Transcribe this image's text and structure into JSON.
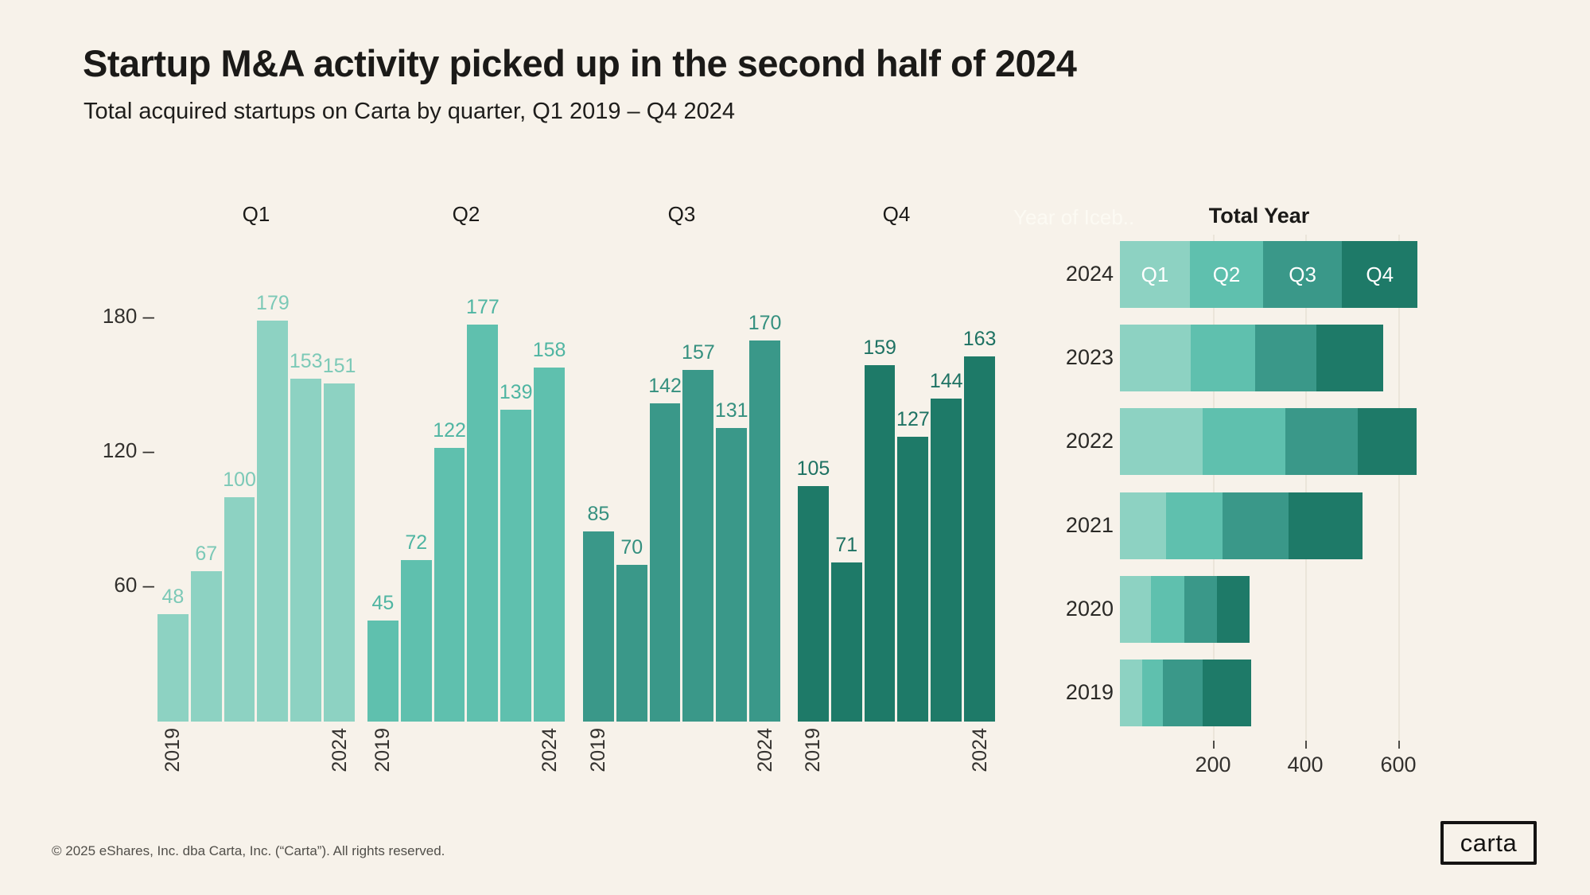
{
  "page": {
    "title": "Startup M&A activity picked up in the second half of 2024",
    "subtitle": "Total acquired startups on Carta by quarter, Q1 2019 – Q4 2024",
    "watermark": "Year of Iceb..",
    "footer": "© 2025 eShares, Inc. dba Carta, Inc. (“Carta”). All rights reserved.",
    "logo_text": "carta"
  },
  "colors": {
    "background": "#F7F2EA",
    "q1": "#8DD2C2",
    "q2": "#5FC0AE",
    "q3": "#3A9889",
    "q4": "#1E7A68",
    "label_q1": "#7CC9B7",
    "label_q2": "#4FB5A2",
    "label_q3": "#35907F",
    "label_q4": "#1E7263",
    "axis_text": "#33312E",
    "title_text": "#1B1A18",
    "gridline": "#EBE5DA",
    "segment_label": "#FFFFFF"
  },
  "left_axis": {
    "yticks": [
      180,
      120,
      60
    ],
    "tick_dash": "–",
    "x_edge_labels": [
      "2019",
      "2024"
    ]
  },
  "chart_data": [
    {
      "id": "q1",
      "type": "bar",
      "title": "Q1",
      "categories": [
        "2019",
        "2020",
        "2021",
        "2022",
        "2023",
        "2024"
      ],
      "values": [
        48,
        67,
        100,
        179,
        153,
        151
      ],
      "color_key": "q1",
      "label_color_key": "label_q1",
      "ylim": [
        0,
        232
      ],
      "yticks": [
        60,
        120,
        180
      ],
      "grid": "off"
    },
    {
      "id": "q2",
      "type": "bar",
      "title": "Q2",
      "categories": [
        "2019",
        "2020",
        "2021",
        "2022",
        "2023",
        "2024"
      ],
      "values": [
        45,
        72,
        122,
        177,
        139,
        158
      ],
      "color_key": "q2",
      "label_color_key": "label_q2",
      "ylim": [
        0,
        232
      ],
      "yticks": [
        60,
        120,
        180
      ],
      "grid": "off"
    },
    {
      "id": "q3",
      "type": "bar",
      "title": "Q3",
      "categories": [
        "2019",
        "2020",
        "2021",
        "2022",
        "2023",
        "2024"
      ],
      "values": [
        85,
        70,
        142,
        157,
        131,
        170
      ],
      "color_key": "q3",
      "label_color_key": "label_q3",
      "ylim": [
        0,
        232
      ],
      "yticks": [
        60,
        120,
        180
      ],
      "grid": "off"
    },
    {
      "id": "q4",
      "type": "bar",
      "title": "Q4",
      "categories": [
        "2019",
        "2020",
        "2021",
        "2022",
        "2023",
        "2024"
      ],
      "values": [
        105,
        71,
        159,
        127,
        144,
        163
      ],
      "color_key": "q4",
      "label_color_key": "label_q4",
      "ylim": [
        0,
        232
      ],
      "yticks": [
        60,
        120,
        180
      ],
      "grid": "off"
    },
    {
      "id": "total-year",
      "type": "bar",
      "orientation": "horizontal",
      "stacked": true,
      "title": "Total Year",
      "categories": [
        "2024",
        "2023",
        "2022",
        "2021",
        "2020",
        "2019"
      ],
      "series": [
        {
          "name": "Q1",
          "color_key": "q1",
          "values": [
            151,
            153,
            179,
            100,
            67,
            48
          ]
        },
        {
          "name": "Q2",
          "color_key": "q2",
          "values": [
            158,
            139,
            177,
            122,
            72,
            45
          ]
        },
        {
          "name": "Q3",
          "color_key": "q3",
          "values": [
            170,
            131,
            157,
            142,
            70,
            85
          ]
        },
        {
          "name": "Q4",
          "color_key": "q4",
          "values": [
            163,
            144,
            127,
            159,
            71,
            105
          ]
        }
      ],
      "totals": [
        642,
        567,
        640,
        523,
        280,
        283
      ],
      "segment_labels_row": "2024",
      "segment_labels": [
        "Q1",
        "Q2",
        "Q3",
        "Q4"
      ],
      "xticks": [
        200,
        400,
        600
      ],
      "xlim": [
        0,
        700
      ],
      "grid": "vertical",
      "legend": "none"
    }
  ]
}
